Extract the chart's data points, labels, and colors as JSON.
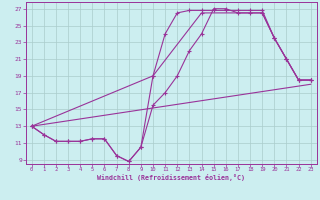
{
  "xlabel": "Windchill (Refroidissement éolien,°C)",
  "bg_color": "#cceef0",
  "grid_color": "#aacccc",
  "line_color": "#993399",
  "xlim_min": -0.5,
  "xlim_max": 23.5,
  "ylim_min": 8.5,
  "ylim_max": 27.8,
  "xticks": [
    0,
    1,
    2,
    3,
    4,
    5,
    6,
    7,
    8,
    9,
    10,
    11,
    12,
    13,
    14,
    15,
    16,
    17,
    18,
    19,
    20,
    21,
    22,
    23
  ],
  "yticks": [
    9,
    11,
    13,
    15,
    17,
    19,
    21,
    23,
    25,
    27
  ],
  "line1_x": [
    0,
    1,
    2,
    3,
    4,
    5,
    6,
    7,
    8,
    9,
    10,
    11,
    12,
    13,
    14,
    15,
    16,
    17,
    18,
    19,
    20,
    21,
    22,
    23
  ],
  "line1_y": [
    13,
    12,
    11.2,
    11.2,
    11.2,
    11.5,
    11.5,
    9.5,
    8.8,
    10.5,
    15.5,
    17.0,
    19.0,
    22.0,
    24.0,
    27.0,
    27.0,
    26.5,
    26.5,
    26.5,
    23.5,
    21.0,
    18.5,
    18.5
  ],
  "line2_x": [
    0,
    1,
    2,
    3,
    4,
    5,
    6,
    7,
    8,
    9,
    10,
    11,
    12,
    13,
    14,
    15,
    16,
    17,
    18,
    19,
    20,
    21,
    22,
    23
  ],
  "line2_y": [
    13,
    12,
    11.2,
    11.2,
    11.2,
    11.5,
    11.5,
    9.5,
    8.8,
    10.5,
    19.0,
    24.0,
    26.5,
    26.8,
    26.8,
    26.8,
    26.8,
    26.8,
    26.8,
    26.8,
    23.5,
    21.0,
    18.5,
    18.5
  ],
  "line3_x": [
    0,
    23
  ],
  "line3_y": [
    13.0,
    18.0
  ],
  "line4_x": [
    0,
    10,
    14,
    19,
    20,
    21,
    22,
    23
  ],
  "line4_y": [
    13.0,
    19.0,
    26.5,
    26.5,
    23.5,
    21.0,
    18.5,
    18.5
  ]
}
